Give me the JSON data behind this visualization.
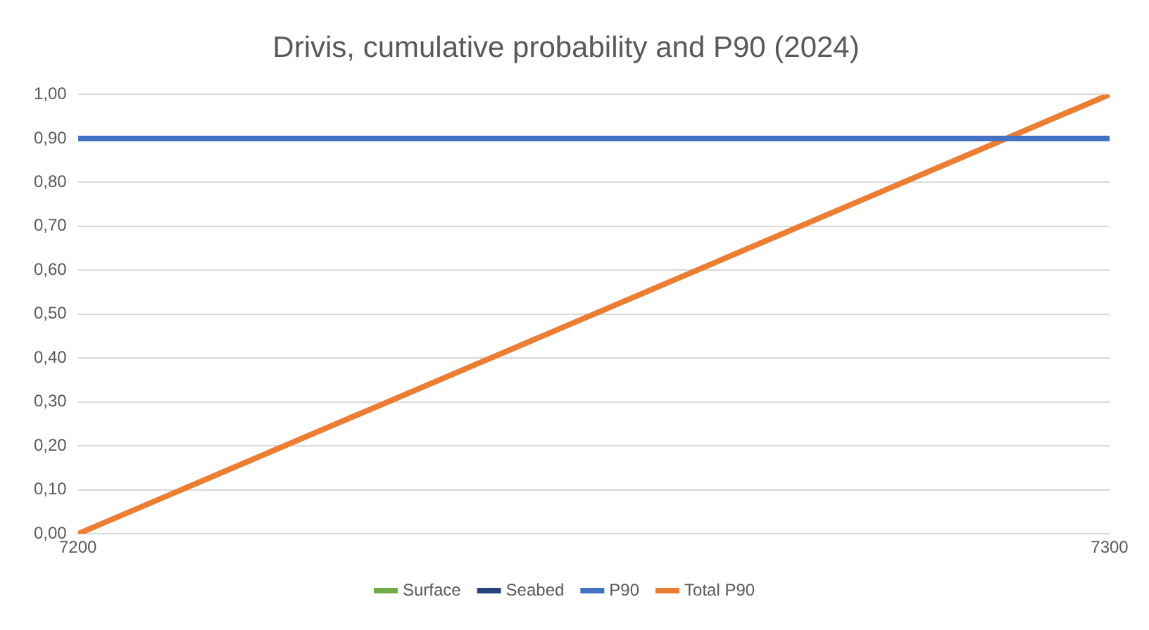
{
  "chart_data": {
    "type": "line",
    "title": "Drivis, cumulative probability and P90 (2024)",
    "x": [
      7200,
      7300
    ],
    "series": [
      {
        "name": "Surface",
        "color": "#70ad47",
        "values": [
          null,
          null
        ]
      },
      {
        "name": "Seabed",
        "color": "#264478",
        "values": [
          null,
          null
        ]
      },
      {
        "name": "P90",
        "color": "#4472c4",
        "values": [
          0.9,
          0.9
        ]
      },
      {
        "name": "Total P90",
        "color": "#ed7d31",
        "values": [
          0,
          1
        ]
      }
    ],
    "xlim": [
      7200,
      7300
    ],
    "xticks": [
      7200,
      7300
    ],
    "ylim": [
      0,
      1
    ],
    "yticks": [
      {
        "value": 0,
        "label": "0,00"
      },
      {
        "value": 0.1,
        "label": "0,10"
      },
      {
        "value": 0.2,
        "label": "0,20"
      },
      {
        "value": 0.3,
        "label": "0,30"
      },
      {
        "value": 0.4,
        "label": "0,40"
      },
      {
        "value": 0.5,
        "label": "0,50"
      },
      {
        "value": 0.6,
        "label": "0,60"
      },
      {
        "value": 0.7,
        "label": "0,70"
      },
      {
        "value": 0.8,
        "label": "0,80"
      },
      {
        "value": 0.9,
        "label": "0,90"
      },
      {
        "value": 1,
        "label": "1,00"
      }
    ],
    "grid": "y",
    "legend": "bottom",
    "marker": "none",
    "line_style": "solid"
  }
}
